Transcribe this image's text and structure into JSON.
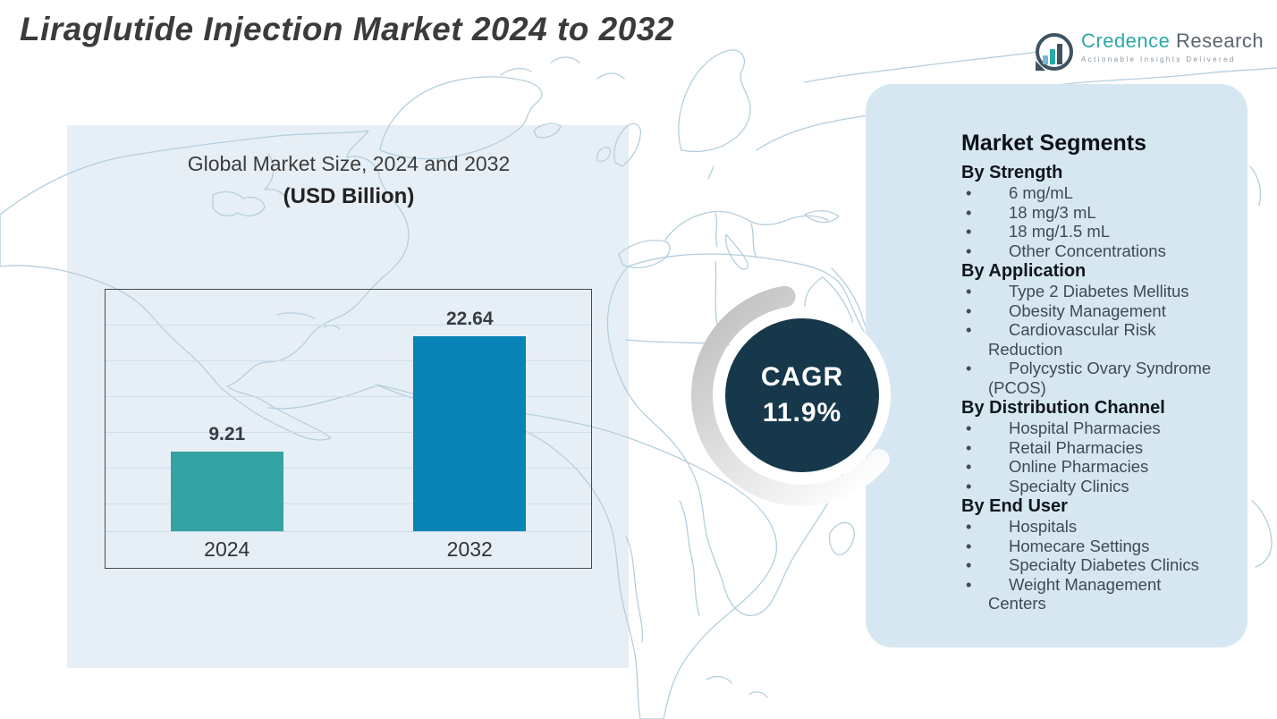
{
  "page_title": "Liraglutide Injection Market 2024 to 2032",
  "logo": {
    "brand_primary": "Credence",
    "brand_secondary": "Research",
    "tagline": "Actionable Insights Delivered",
    "brand_color": "#2ba7ab",
    "text_color": "#5a646e"
  },
  "chart_data": {
    "type": "bar",
    "title_line1": "Global Market Size, 2024 and 2032",
    "title_line2": "(USD Billion)",
    "categories": [
      "2024",
      "2032"
    ],
    "values": [
      9.21,
      22.64
    ],
    "value_labels": [
      "9.21",
      "22.64"
    ],
    "bar_colors": [
      "#33a3a3",
      "#0883b5"
    ],
    "xlabel": "",
    "ylabel": "",
    "ylim": [
      0,
      28
    ],
    "grid": true,
    "legend": false
  },
  "cagr": {
    "label": "CAGR",
    "value": "11.9%",
    "circle_color": "#16384a",
    "text_color": "#ffffff"
  },
  "segments_panel": {
    "title": "Market Segments",
    "background": "#d7e7f2",
    "bullet": "•",
    "groups": [
      {
        "heading": "By Strength",
        "items": [
          "6 mg/mL",
          "18 mg/3 mL",
          "18 mg/1.5 mL",
          "Other Concentrations"
        ]
      },
      {
        "heading": "By Application",
        "items": [
          "Type 2 Diabetes Mellitus",
          "Obesity Management",
          "Cardiovascular Risk\nReduction",
          "Polycystic Ovary Syndrome\n(PCOS)"
        ]
      },
      {
        "heading": "By Distribution Channel",
        "items": [
          "Hospital Pharmacies",
          "Retail Pharmacies",
          "Online Pharmacies",
          "Specialty Clinics"
        ]
      },
      {
        "heading": "By End User",
        "items": [
          "Hospitals",
          "Homecare Settings",
          "Specialty Diabetes Clinics",
          "Weight Management\nCenters"
        ]
      }
    ]
  }
}
